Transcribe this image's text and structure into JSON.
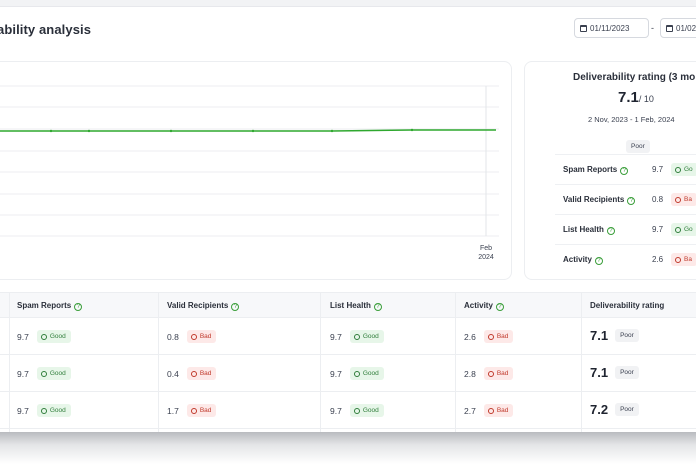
{
  "page": {
    "title": "ability analysis",
    "date_from": "01/11/2023",
    "date_separator": "-",
    "date_to": "01/02"
  },
  "chart": {
    "x_tick_month": "Feb",
    "x_tick_year": "2024",
    "line_color": "#2fa82f"
  },
  "chart_data": {
    "type": "line",
    "x_tick_labels": [
      "Feb 2024"
    ],
    "series": [
      {
        "values": [
          7.1,
          7.1,
          7.1,
          7.1,
          7.1,
          7.1,
          7.2,
          7.2
        ]
      }
    ]
  },
  "rating_card": {
    "title": "Deliverability rating (3 mo",
    "score": "7.1",
    "denominator": "/ 10",
    "range": "2 Nov, 2023 - 1 Feb, 2024",
    "badge": "Poor",
    "rows": [
      {
        "label": "Spam Reports",
        "value": "9.7",
        "status": "Go"
      },
      {
        "label": "Valid Recipients",
        "value": "0.8",
        "status": "Ba"
      },
      {
        "label": "List Health",
        "value": "9.7",
        "status": "Go"
      },
      {
        "label": "Activity",
        "value": "2.6",
        "status": "Ba"
      }
    ]
  },
  "table": {
    "headers": {
      "spam": "Spam Reports",
      "valid": "Valid Recipients",
      "health": "List Health",
      "activity": "Activity",
      "rating": "Deliverability rating"
    },
    "rows": [
      {
        "spam": "9.7",
        "spam_status": "Good",
        "valid": "0.8",
        "valid_status": "Bad",
        "health": "9.7",
        "health_status": "Good",
        "activity": "2.6",
        "activity_status": "Bad",
        "rating": "7.1",
        "rating_status": "Poor"
      },
      {
        "spam": "9.7",
        "spam_status": "Good",
        "valid": "0.4",
        "valid_status": "Bad",
        "health": "9.7",
        "health_status": "Good",
        "activity": "2.8",
        "activity_status": "Bad",
        "rating": "7.1",
        "rating_status": "Poor"
      },
      {
        "spam": "9.7",
        "spam_status": "Good",
        "valid": "1.7",
        "valid_status": "Bad",
        "health": "9.7",
        "health_status": "Good",
        "activity": "2.7",
        "activity_status": "Bad",
        "rating": "7.2",
        "rating_status": "Poor"
      }
    ]
  },
  "colors": {
    "good_bg": "#e7f6e9",
    "good_text": "#2f7d3a",
    "bad_bg": "#fde9e8",
    "bad_text": "#c0392b",
    "help_icon": "#3a9e3a"
  },
  "icons": {
    "calendar": "calendar-icon",
    "help": "help-circle-icon",
    "good": "smile-face-icon",
    "bad": "sad-face-icon"
  }
}
